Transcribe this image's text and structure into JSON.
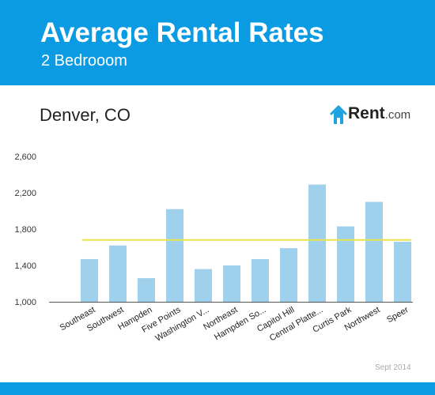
{
  "header": {
    "title": "Average Rental Rates",
    "subtitle": "2 Bedrooom"
  },
  "chart_title": "Denver, CO",
  "logo": {
    "brand": "Rent",
    "tld": ".com",
    "icon": "house-icon"
  },
  "footer": {
    "date": "Sept 2014"
  },
  "colors": {
    "header": "#0b9be2",
    "bar": "#9fd0ec",
    "average_line": "#e8e34a",
    "logo_accent": "#1fa3e0"
  },
  "chart_data": {
    "type": "bar",
    "title": "Denver, CO",
    "xlabel": "",
    "ylabel": "",
    "categories": [
      "Southeast",
      "Southwest",
      "Hampden",
      "Five Points",
      "Washington V...",
      "Northeast",
      "Hampden So...",
      "Capitol Hill",
      "Central Platte...",
      "Curtis Park",
      "Northwest",
      "Speer"
    ],
    "values": [
      1470,
      1620,
      1260,
      2020,
      1360,
      1400,
      1470,
      1590,
      2290,
      1830,
      2100,
      1660
    ],
    "reference_line": 1680,
    "ylim": [
      1000,
      2600
    ],
    "yticks": [
      1000,
      1400,
      1800,
      2200,
      2600
    ],
    "ytick_labels": [
      "1,000",
      "1,400",
      "1,800",
      "2,200",
      "2,600"
    ],
    "grid": false,
    "legend": "none"
  }
}
